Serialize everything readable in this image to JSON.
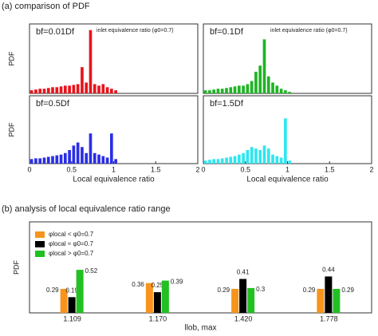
{
  "panel_a_title": "(a) comparison of PDF",
  "panel_b_title": "(b) analysis of local equivalence ratio range",
  "chart_data": [
    {
      "type": "histogram",
      "label": "bf=0.01Df",
      "annotation": "inlet equivalence ratio (φ0=0.7)",
      "ylabel": "PDF",
      "color": "#e8141c",
      "bins": [
        0,
        0.05,
        0.1,
        0.15,
        0.2,
        0.25,
        0.3,
        0.35,
        0.4,
        0.45,
        0.5,
        0.55,
        0.6,
        0.65,
        0.7,
        0.75,
        0.8,
        0.85,
        0.9,
        0.95,
        1,
        1.05
      ],
      "values": [
        0.02,
        0.025,
        0.03,
        0.03,
        0.035,
        0.04,
        0.04,
        0.045,
        0.05,
        0.05,
        0.055,
        0.06,
        0.17,
        0.07,
        0.41,
        0.06,
        0.05,
        0.06,
        0.04,
        0.03,
        0.02
      ],
      "xlim": [
        0,
        2
      ],
      "ylim": [
        0,
        0.45
      ]
    },
    {
      "type": "histogram",
      "label": "bf=0.1Df",
      "annotation": "inlet equivalence ratio (φ0=0.7)",
      "color": "#1fb424",
      "bins": [
        0,
        0.05,
        0.1,
        0.15,
        0.2,
        0.25,
        0.3,
        0.35,
        0.4,
        0.45,
        0.5,
        0.55,
        0.6,
        0.65,
        0.7,
        0.75,
        0.8,
        0.85,
        0.9,
        0.95,
        1,
        1.05
      ],
      "values": [
        0.02,
        0.02,
        0.025,
        0.03,
        0.03,
        0.035,
        0.04,
        0.045,
        0.05,
        0.05,
        0.06,
        0.08,
        0.14,
        0.18,
        0.35,
        0.11,
        0.07,
        0.05,
        0.03,
        0.02,
        0.01
      ],
      "xlim": [
        0,
        2
      ],
      "ylim": [
        0,
        0.45
      ]
    },
    {
      "type": "histogram",
      "label": "bf=0.5Df",
      "ylabel": "PDF",
      "xlabel": "Local equivalence ratio",
      "color": "#2a2ee6",
      "bins": [
        0,
        0.05,
        0.1,
        0.15,
        0.2,
        0.25,
        0.3,
        0.35,
        0.4,
        0.45,
        0.5,
        0.55,
        0.6,
        0.65,
        0.7,
        0.75,
        0.8,
        0.85,
        0.9,
        0.95,
        1,
        1.05
      ],
      "values": [
        0.03,
        0.035,
        0.035,
        0.04,
        0.045,
        0.05,
        0.055,
        0.06,
        0.07,
        0.09,
        0.12,
        0.14,
        0.11,
        0.07,
        0.2,
        0.07,
        0.06,
        0.05,
        0.04,
        0.2,
        0.03
      ],
      "xlim": [
        0,
        2
      ],
      "ylim": [
        0,
        0.45
      ],
      "xticks": [
        0,
        0.5,
        1,
        1.5,
        2
      ]
    },
    {
      "type": "histogram",
      "label": "bf=1.5Df",
      "xlabel": "Local equivalence ratio",
      "color": "#2ee6f0",
      "bins": [
        0,
        0.05,
        0.1,
        0.15,
        0.2,
        0.25,
        0.3,
        0.35,
        0.4,
        0.45,
        0.5,
        0.55,
        0.6,
        0.65,
        0.7,
        0.75,
        0.8,
        0.85,
        0.9,
        0.95,
        1,
        1.05
      ],
      "values": [
        0.02,
        0.025,
        0.03,
        0.03,
        0.035,
        0.04,
        0.045,
        0.05,
        0.06,
        0.07,
        0.09,
        0.11,
        0.1,
        0.09,
        0.12,
        0.1,
        0.06,
        0.05,
        0.04,
        0.3,
        0.02
      ],
      "xlim": [
        0,
        2
      ],
      "ylim": [
        0,
        0.45
      ],
      "xticks": [
        0,
        0.5,
        1,
        1.5,
        2
      ]
    },
    {
      "type": "bar",
      "ylabel": "PDF",
      "xlabel": "llob, max",
      "categories": [
        "1.109",
        "1.170",
        "1.420",
        "1.778"
      ],
      "series": [
        {
          "name": "φlocal < φ0=0.7",
          "color": "#f7941d",
          "values": [
            0.29,
            0.36,
            0.29,
            0.29
          ]
        },
        {
          "name": "φlocal ≈ φ0=0.7",
          "color": "#000000",
          "values": [
            0.19,
            0.25,
            0.41,
            0.44
          ]
        },
        {
          "name": "φlocal > φ0=0.7",
          "color": "#22c022",
          "values": [
            0.52,
            0.39,
            0.3,
            0.29
          ]
        }
      ],
      "ylim": [
        0,
        1.1
      ]
    }
  ]
}
